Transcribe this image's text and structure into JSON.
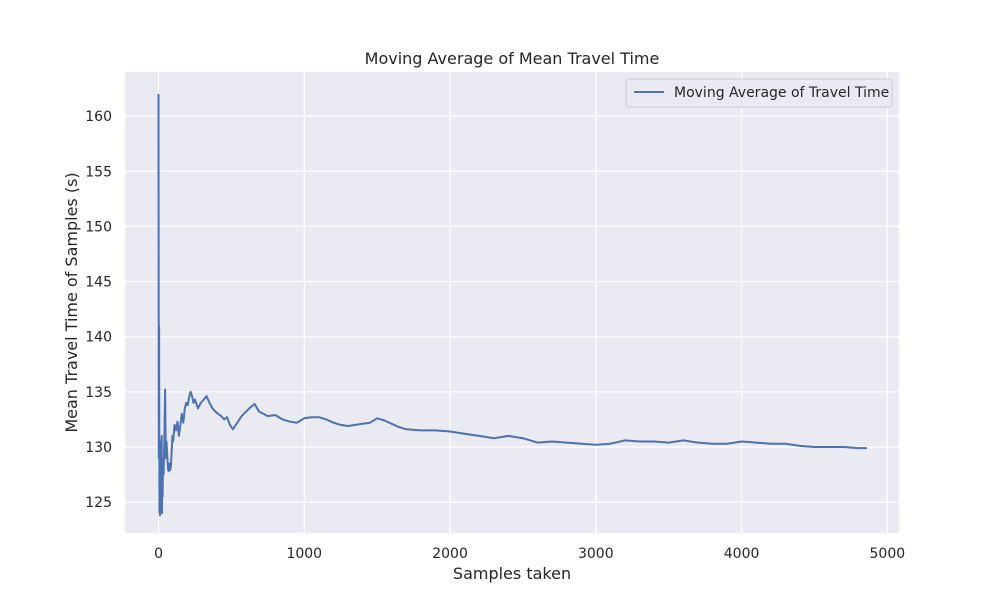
{
  "chart_data": {
    "type": "line",
    "title": "Moving Average of Mean Travel Time",
    "xlabel": "Samples taken",
    "ylabel": "Mean Travel Time of Samples (s)",
    "xlim": [
      -230,
      5080
    ],
    "ylim": [
      122.2,
      164.0
    ],
    "xticks": [
      0,
      1000,
      2000,
      3000,
      4000,
      5000
    ],
    "xtick_labels": [
      "0",
      "1000",
      "2000",
      "3000",
      "4000",
      "5000"
    ],
    "yticks": [
      125,
      130,
      135,
      140,
      145,
      150,
      155,
      160
    ],
    "ytick_labels": [
      "125",
      "130",
      "135",
      "140",
      "145",
      "150",
      "155",
      "160"
    ],
    "grid": true,
    "legend_position": "top-right",
    "colors": {
      "background": "#eaeaf2",
      "grid": "#ffffff",
      "line": "#4c72b0"
    },
    "series": [
      {
        "name": "Moving Average of Travel Time",
        "x": [
          0,
          2,
          4,
          6,
          8,
          10,
          12,
          14,
          16,
          18,
          20,
          22,
          24,
          26,
          28,
          30,
          35,
          40,
          45,
          50,
          55,
          60,
          65,
          70,
          75,
          80,
          85,
          90,
          95,
          100,
          110,
          120,
          130,
          140,
          150,
          160,
          170,
          180,
          190,
          200,
          210,
          220,
          230,
          240,
          250,
          270,
          290,
          310,
          330,
          350,
          370,
          390,
          410,
          430,
          450,
          470,
          490,
          510,
          530,
          550,
          570,
          600,
          630,
          660,
          690,
          720,
          750,
          800,
          850,
          900,
          950,
          1000,
          1050,
          1100,
          1150,
          1200,
          1250,
          1300,
          1350,
          1400,
          1450,
          1500,
          1550,
          1600,
          1650,
          1700,
          1800,
          1900,
          2000,
          2100,
          2200,
          2300,
          2400,
          2500,
          2600,
          2700,
          2800,
          2900,
          3000,
          3100,
          3200,
          3300,
          3400,
          3500,
          3600,
          3700,
          3800,
          3900,
          4000,
          4100,
          4200,
          4300,
          4400,
          4500,
          4600,
          4700,
          4800,
          4860
        ],
        "y": [
          162.0,
          129.0,
          141.0,
          124.0,
          130.0,
          123.8,
          127.0,
          130.5,
          124.5,
          128.0,
          126.0,
          131.0,
          124.0,
          129.0,
          125.5,
          128.0,
          127.5,
          131.0,
          135.2,
          129.0,
          130.5,
          129.2,
          128.0,
          127.8,
          128.5,
          127.9,
          128.3,
          129.5,
          131.0,
          130.5,
          132.0,
          131.5,
          132.3,
          131.0,
          132.0,
          133.0,
          132.2,
          133.5,
          134.0,
          133.8,
          134.5,
          135.0,
          134.6,
          134.0,
          134.3,
          133.5,
          134.0,
          134.3,
          134.6,
          134.0,
          133.5,
          133.2,
          133.0,
          132.8,
          132.5,
          132.7,
          132.0,
          131.6,
          132.0,
          132.4,
          132.8,
          133.2,
          133.6,
          133.9,
          133.2,
          133.0,
          132.8,
          132.9,
          132.5,
          132.3,
          132.2,
          132.6,
          132.7,
          132.7,
          132.5,
          132.2,
          132.0,
          131.9,
          132.0,
          132.1,
          132.2,
          132.6,
          132.4,
          132.1,
          131.8,
          131.6,
          131.5,
          131.5,
          131.4,
          131.2,
          131.0,
          130.8,
          131.0,
          130.8,
          130.4,
          130.5,
          130.4,
          130.3,
          130.2,
          130.3,
          130.6,
          130.5,
          130.5,
          130.4,
          130.6,
          130.4,
          130.3,
          130.3,
          130.5,
          130.4,
          130.3,
          130.3,
          130.1,
          130.0,
          130.0,
          130.0,
          129.9,
          129.9
        ]
      }
    ]
  }
}
